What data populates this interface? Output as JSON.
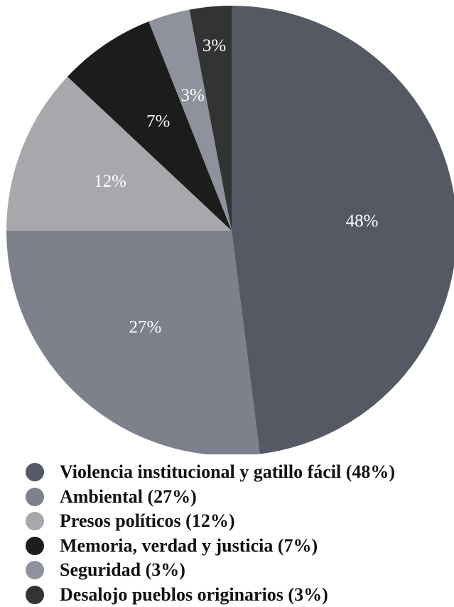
{
  "chart_data": {
    "type": "pie",
    "title": "",
    "slices": [
      {
        "label": "Violencia institucional y gatillo fácil",
        "value": 48,
        "display": "48%",
        "legend": "Violencia institucional y gatillo fácil (48%)",
        "color": "#545963"
      },
      {
        "label": "Ambiental",
        "value": 27,
        "display": "27%",
        "legend": "Ambiental (27%)",
        "color": "#7c818b"
      },
      {
        "label": "Presos políticos",
        "value": 12,
        "display": "12%",
        "legend": "Presos políticos (12%)",
        "color": "#a6a8ac"
      },
      {
        "label": "Memoria, verdad y justicia",
        "value": 7,
        "display": "7%",
        "legend": "Memoria, verdad y justicia (7%)",
        "color": "#1c1c1c"
      },
      {
        "label": "Seguridad",
        "value": 3,
        "display": "3%",
        "legend": "Seguridad (3%)",
        "color": "#8d929c"
      },
      {
        "label": "Desalojo pueblos originarios",
        "value": 3,
        "display": "3%",
        "legend": "Desalojo pueblos originarios (3%)",
        "color": "#333333"
      }
    ],
    "start_angle": "12 o'clock",
    "direction": "clockwise",
    "legend_position": "bottom"
  }
}
